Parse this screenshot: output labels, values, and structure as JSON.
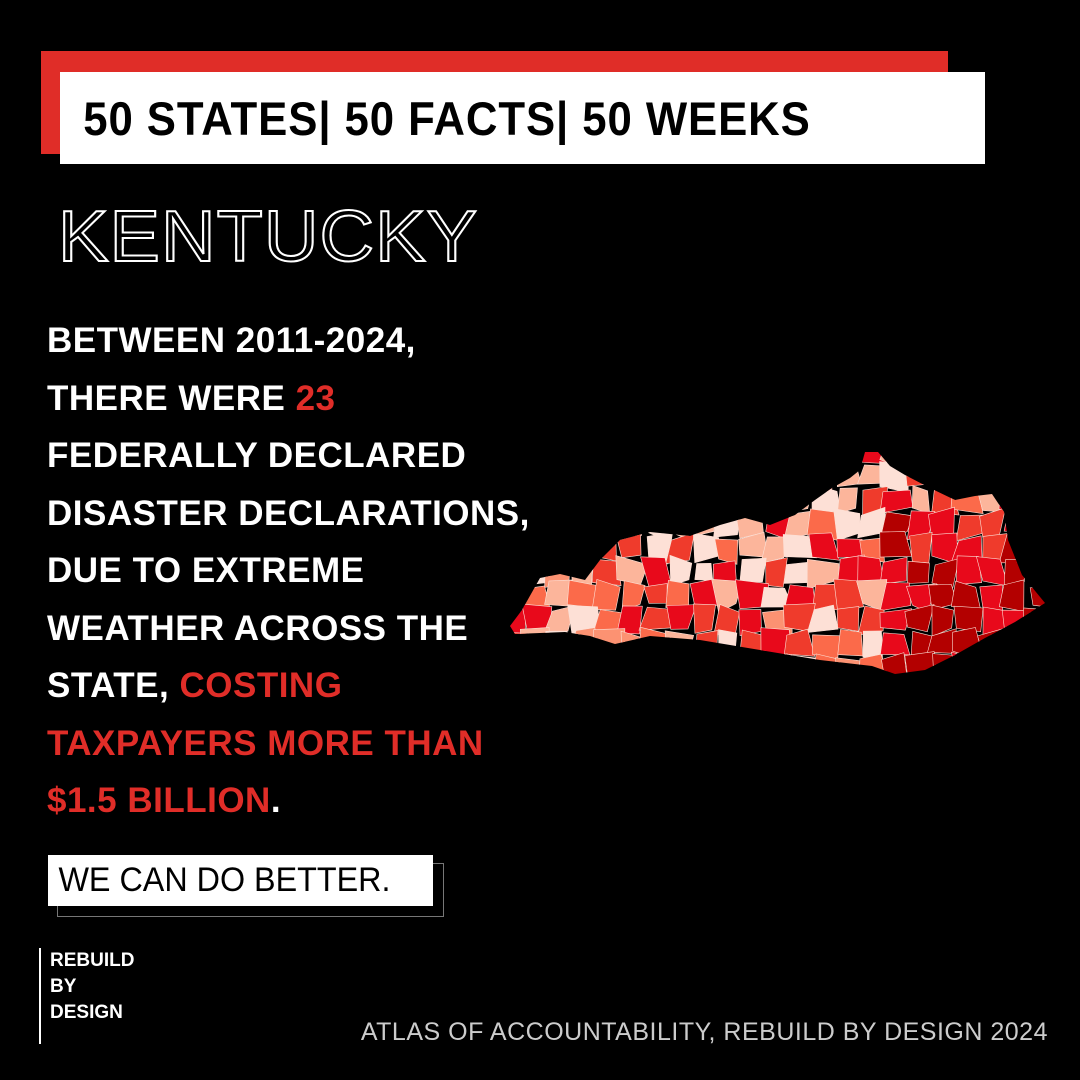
{
  "header": {
    "banner": "50 STATES| 50 FACTS| 50 WEEKS"
  },
  "state_name": "KENTUCKY",
  "fact": {
    "line1": "BETWEEN 2011-2024,",
    "line2_pre": "THERE WERE ",
    "count": "23",
    "line3": "FEDERALLY DECLARED",
    "line4": "DISASTER DECLARATIONS,",
    "line5": "DUE TO EXTREME",
    "line6": "WEATHER ACROSS THE",
    "line7_pre": "STATE, ",
    "cost_1": "COSTING",
    "cost_2": "TAXPAYERS MORE THAN",
    "cost_3": "$1.5 BILLION",
    "end": "."
  },
  "cta": "WE CAN DO BETTER.",
  "logo": {
    "line1": "REBUILD",
    "line2": "BY",
    "line3": "DESIGN"
  },
  "credit": "ATLAS OF ACCOUNTABILITY, REBUILD BY DESIGN 2024",
  "colors": {
    "accent": "#e02d28",
    "background": "#000000",
    "map_palette": [
      "#fde0d6",
      "#fcb59b",
      "#fc9272",
      "#fb6a4a",
      "#ef3b2c",
      "#e8091b",
      "#b30000"
    ]
  }
}
